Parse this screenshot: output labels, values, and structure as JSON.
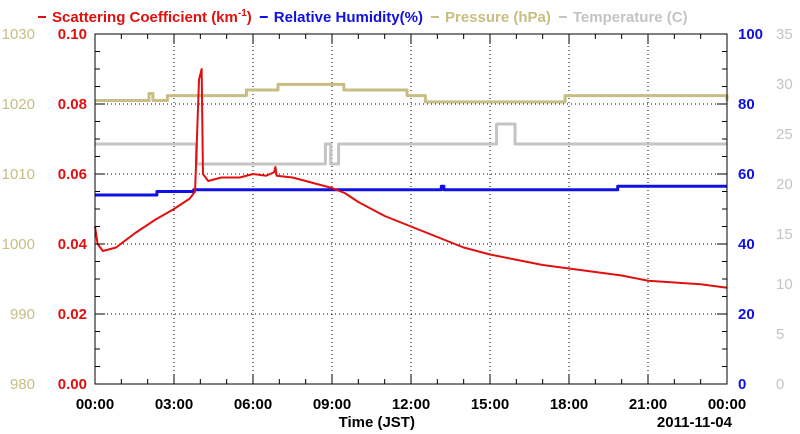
{
  "chart_data": {
    "type": "line",
    "xlabel": "Time (JST)",
    "date_label": "2011-11-04",
    "x_ticks": [
      "00:00",
      "03:00",
      "06:00",
      "09:00",
      "12:00",
      "15:00",
      "18:00",
      "21:00",
      "00:00"
    ],
    "xlim_hours": [
      0,
      24
    ],
    "grid": true,
    "legend_placement": "top",
    "axes": {
      "scattering": {
        "ylim": [
          0,
          0.1
        ],
        "ticks": [
          "0.00",
          "0.02",
          "0.04",
          "0.06",
          "0.08",
          "0.10"
        ],
        "color": "#e01010"
      },
      "humidity": {
        "ylim": [
          0,
          100
        ],
        "ticks": [
          "0",
          "20",
          "40",
          "60",
          "80",
          "100"
        ],
        "color": "#1010e0"
      },
      "pressure": {
        "ylim": [
          980,
          1030
        ],
        "ticks": [
          "980",
          "990",
          "1000",
          "1010",
          "1020",
          "1030"
        ],
        "color": "#c8bd82"
      },
      "temperature": {
        "ylim": [
          0,
          35
        ],
        "ticks": [
          "0",
          "5",
          "10",
          "15",
          "20",
          "25",
          "30",
          "35"
        ],
        "color": "#c4c4c4"
      }
    },
    "legend": [
      {
        "key": "scattering",
        "prefix": "Scattering Coefficient (km",
        "sup": "-1",
        "suffix": ")",
        "color": "#e01010"
      },
      {
        "key": "humidity",
        "prefix": "Relative Humidity(%)",
        "sup": "",
        "suffix": "",
        "color": "#1010e0"
      },
      {
        "key": "pressure",
        "prefix": "Pressure (hPa)",
        "sup": "",
        "suffix": "",
        "color": "#c8bd82"
      },
      {
        "key": "temperature",
        "prefix": "Temperature (",
        "sup": "",
        "suffix": "C)",
        "color": "#c4c4c4"
      }
    ],
    "series": [
      {
        "key": "pressure",
        "axis": "pressure",
        "step": true,
        "points": [
          [
            0,
            1020.5
          ],
          [
            2,
            1020.5
          ],
          [
            2.05,
            1021.5
          ],
          [
            2.2,
            1020.5
          ],
          [
            2.7,
            1020.5
          ],
          [
            2.75,
            1021.2
          ],
          [
            5.7,
            1021.2
          ],
          [
            5.75,
            1022
          ],
          [
            6.9,
            1022
          ],
          [
            6.95,
            1022.8
          ],
          [
            9.4,
            1022.8
          ],
          [
            9.45,
            1022
          ],
          [
            11.8,
            1022
          ],
          [
            11.85,
            1021.2
          ],
          [
            12.5,
            1021.2
          ],
          [
            12.55,
            1020.3
          ],
          [
            17.8,
            1020.3
          ],
          [
            17.85,
            1021.2
          ],
          [
            23.8,
            1021.2
          ],
          [
            24,
            1020.5
          ]
        ]
      },
      {
        "key": "temperature",
        "axis": "temperature",
        "step": true,
        "points": [
          [
            0,
            24
          ],
          [
            3.8,
            24
          ],
          [
            3.85,
            22
          ],
          [
            8.7,
            22
          ],
          [
            8.75,
            24
          ],
          [
            8.9,
            24
          ],
          [
            8.95,
            22
          ],
          [
            9.2,
            22
          ],
          [
            9.25,
            24
          ],
          [
            15.2,
            24
          ],
          [
            15.25,
            26
          ],
          [
            15.9,
            26
          ],
          [
            15.95,
            24
          ],
          [
            24,
            24
          ]
        ]
      },
      {
        "key": "humidity",
        "axis": "humidity",
        "step": true,
        "points": [
          [
            0,
            54
          ],
          [
            2.3,
            54
          ],
          [
            2.35,
            55
          ],
          [
            3.7,
            55
          ],
          [
            3.75,
            55.5
          ],
          [
            13.1,
            55.5
          ],
          [
            13.15,
            56.5
          ],
          [
            13.25,
            55.5
          ],
          [
            19.8,
            55.5
          ],
          [
            19.85,
            56.5
          ],
          [
            24,
            56.5
          ]
        ]
      },
      {
        "key": "scattering",
        "axis": "scattering",
        "step": false,
        "points": [
          [
            0,
            0.045
          ],
          [
            0.1,
            0.04
          ],
          [
            0.3,
            0.038
          ],
          [
            0.8,
            0.039
          ],
          [
            1.5,
            0.043
          ],
          [
            2.3,
            0.047
          ],
          [
            3.0,
            0.05
          ],
          [
            3.6,
            0.053
          ],
          [
            3.8,
            0.055
          ],
          [
            3.95,
            0.087
          ],
          [
            4.05,
            0.09
          ],
          [
            4.1,
            0.06
          ],
          [
            4.3,
            0.058
          ],
          [
            4.8,
            0.059
          ],
          [
            5.5,
            0.059
          ],
          [
            6.0,
            0.06
          ],
          [
            6.5,
            0.0595
          ],
          [
            6.8,
            0.0605
          ],
          [
            6.85,
            0.062
          ],
          [
            6.9,
            0.0595
          ],
          [
            7.5,
            0.059
          ],
          [
            8.0,
            0.058
          ],
          [
            8.5,
            0.057
          ],
          [
            9.0,
            0.056
          ],
          [
            9.5,
            0.0545
          ],
          [
            10.0,
            0.052
          ],
          [
            10.5,
            0.05
          ],
          [
            11.0,
            0.048
          ],
          [
            11.5,
            0.0465
          ],
          [
            12.0,
            0.045
          ],
          [
            12.5,
            0.0435
          ],
          [
            13.0,
            0.042
          ],
          [
            13.5,
            0.0405
          ],
          [
            14.0,
            0.039
          ],
          [
            14.5,
            0.038
          ],
          [
            15.0,
            0.037
          ],
          [
            16.0,
            0.0355
          ],
          [
            17.0,
            0.034
          ],
          [
            18.0,
            0.033
          ],
          [
            19.0,
            0.032
          ],
          [
            20.0,
            0.031
          ],
          [
            21.0,
            0.0295
          ],
          [
            22.0,
            0.029
          ],
          [
            23.0,
            0.0285
          ],
          [
            24.0,
            0.0275
          ]
        ]
      }
    ]
  }
}
